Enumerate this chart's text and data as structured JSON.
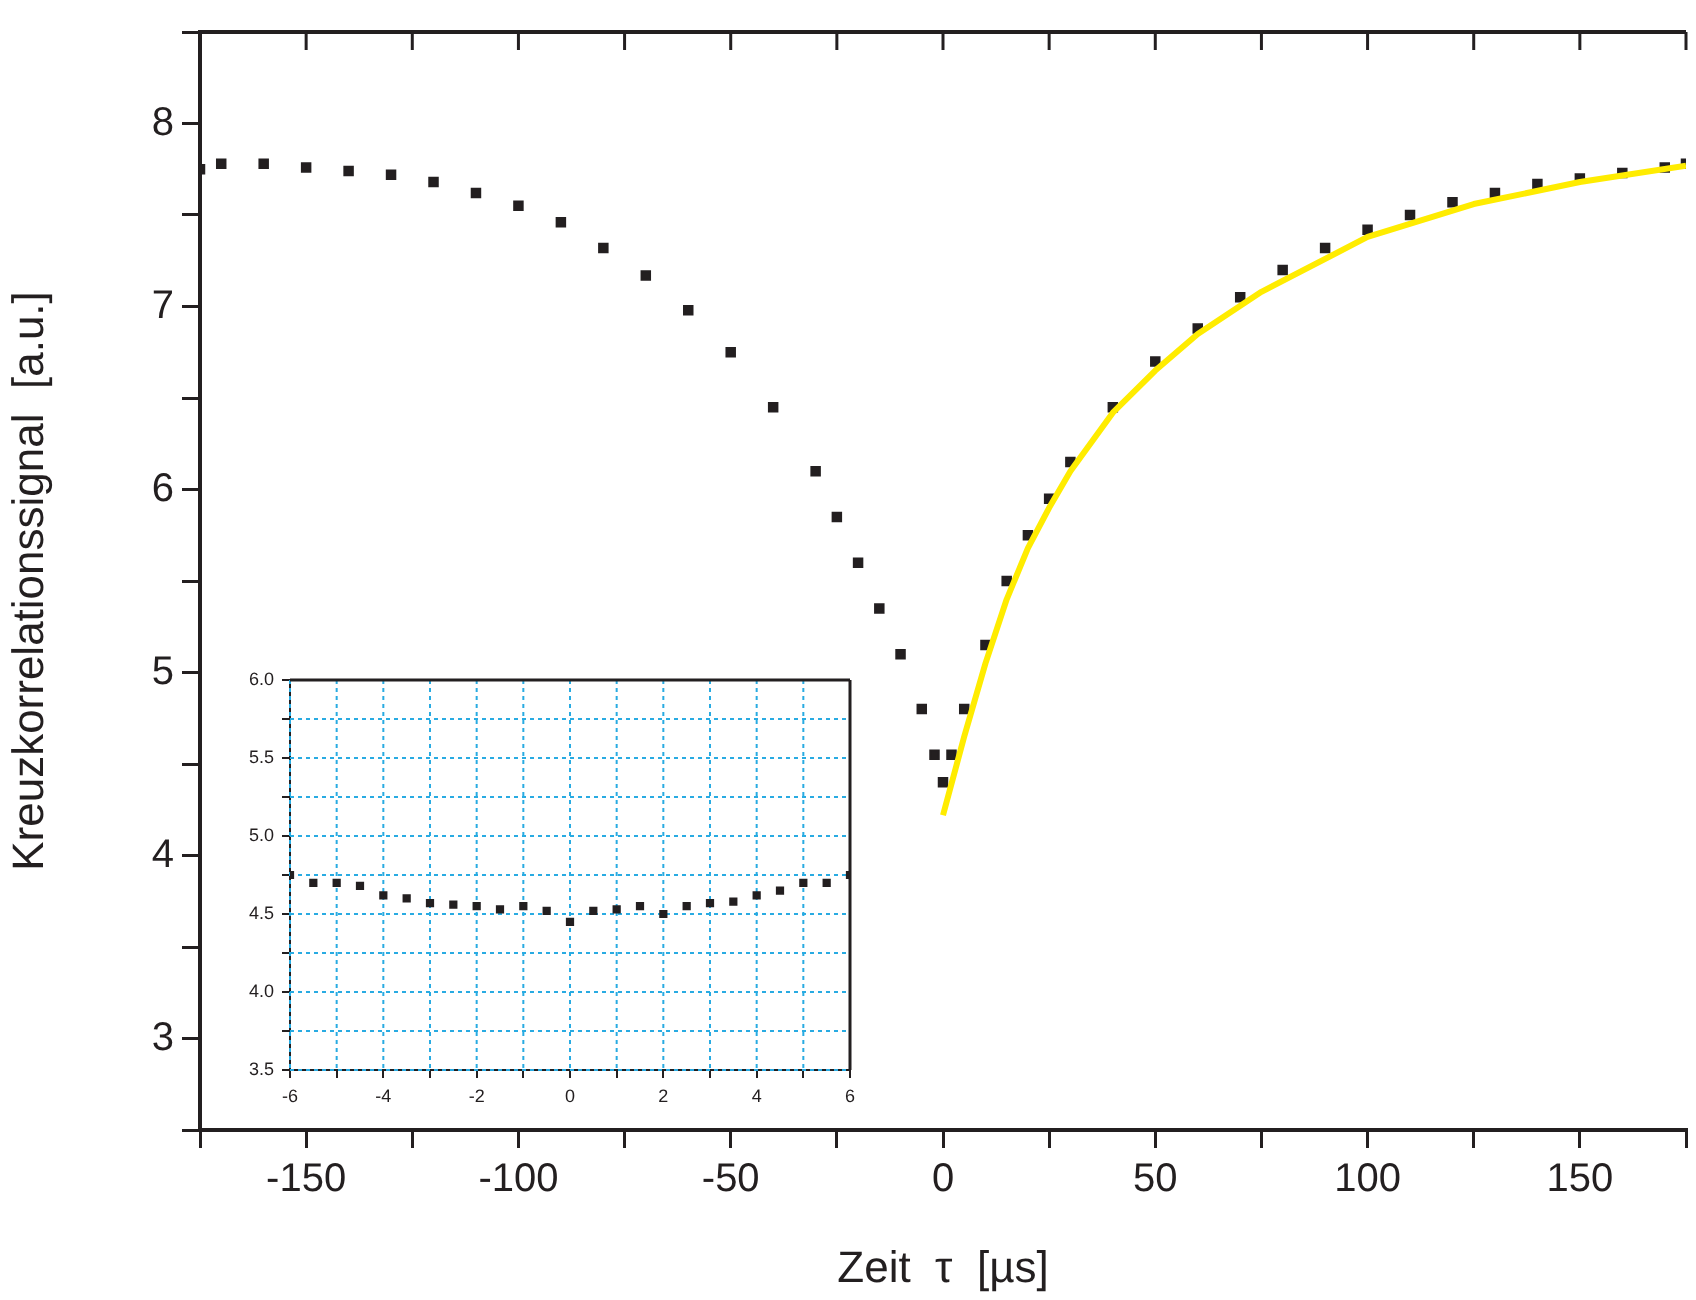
{
  "chart_data": [
    {
      "type": "scatter",
      "xlabel": "Zeit  τ  [µs]",
      "ylabel": "Kreuzkorrelationssignal  [a.u.]",
      "xlim": [
        -175,
        175
      ],
      "ylim": [
        2.5,
        8.5
      ],
      "xticks": [
        {
          "value": -175,
          "label": null
        },
        -150,
        {
          "value": -125,
          "label": null
        },
        -100,
        {
          "value": -75,
          "label": null
        },
        -50,
        {
          "value": -25,
          "label": null
        },
        0,
        {
          "value": 25,
          "label": null
        },
        50,
        {
          "value": 75,
          "label": null
        },
        100,
        {
          "value": 125,
          "label": null
        },
        150,
        {
          "value": 175,
          "label": null
        }
      ],
      "yticks": [
        {
          "value": 2.5,
          "label": null
        },
        3,
        {
          "value": 3.5,
          "label": null
        },
        4,
        {
          "value": 4.5,
          "label": null
        },
        5,
        {
          "value": 5.5,
          "label": null
        },
        6,
        {
          "value": 6.5,
          "label": null
        },
        7,
        {
          "value": 7.5,
          "label": null
        },
        8,
        {
          "value": 8.5,
          "label": null
        }
      ],
      "grid": false,
      "legend": false,
      "marker": "square",
      "series": [
        {
          "type": "scatter",
          "color": "#231f20",
          "x": [
            -175,
            -170,
            -160,
            -150,
            -140,
            -130,
            -120,
            -110,
            -100,
            -90,
            -80,
            -70,
            -60,
            -50,
            -40,
            -30,
            -25,
            -20,
            -15,
            -10,
            -5,
            -2,
            0,
            2,
            5,
            10,
            15,
            20,
            25,
            30,
            40,
            50,
            60,
            70,
            80,
            90,
            100,
            110,
            120,
            130,
            140,
            150,
            160,
            170,
            175
          ],
          "values": [
            7.75,
            7.78,
            7.78,
            7.76,
            7.74,
            7.72,
            7.68,
            7.62,
            7.55,
            7.46,
            7.32,
            7.17,
            6.98,
            6.75,
            6.45,
            6.1,
            5.85,
            5.6,
            5.35,
            5.1,
            4.8,
            4.55,
            4.4,
            4.55,
            4.8,
            5.15,
            5.5,
            5.75,
            5.95,
            6.15,
            6.45,
            6.7,
            6.88,
            7.05,
            7.2,
            7.32,
            7.42,
            7.5,
            7.57,
            7.62,
            7.67,
            7.7,
            7.73,
            7.76,
            7.78
          ]
        },
        {
          "type": "line",
          "color": "#ffec00",
          "marker": "none",
          "x": [
            0,
            5,
            10,
            15,
            20,
            25,
            30,
            40,
            50,
            60,
            75,
            100,
            125,
            150,
            175
          ],
          "values": [
            4.22,
            4.65,
            5.05,
            5.4,
            5.68,
            5.9,
            6.1,
            6.42,
            6.65,
            6.85,
            7.08,
            7.38,
            7.56,
            7.68,
            7.77
          ]
        }
      ]
    },
    {
      "type": "scatter",
      "xlim": [
        -6,
        6
      ],
      "ylim": [
        3.5,
        6
      ],
      "xticks": [
        -6,
        {
          "value": -5,
          "label": null
        },
        -4,
        {
          "value": -3,
          "label": null
        },
        -2,
        {
          "value": -1,
          "label": null
        },
        0,
        {
          "value": 1,
          "label": null
        },
        2,
        {
          "value": 3,
          "label": null
        },
        4,
        {
          "value": 5,
          "label": null
        },
        6
      ],
      "yticks": [
        {
          "value": 3.5,
          "label": "3.5"
        },
        {
          "value": 3.75,
          "label": null
        },
        {
          "value": 4,
          "label": "4.0"
        },
        {
          "value": 4.25,
          "label": null
        },
        {
          "value": 4.5,
          "label": "4.5"
        },
        {
          "value": 4.75,
          "label": null
        },
        {
          "value": 5,
          "label": "5.0"
        },
        {
          "value": 5.25,
          "label": null
        },
        {
          "value": 5.5,
          "label": "5.5"
        },
        {
          "value": 5.75,
          "label": null
        },
        {
          "value": 6,
          "label": "6.0"
        }
      ],
      "grid": true,
      "legend": false,
      "marker": "square",
      "series": [
        {
          "color": "#231f20",
          "x": [
            -6,
            -5.5,
            -5,
            -4.5,
            -4,
            -3.5,
            -3,
            -2.5,
            -2,
            -1.5,
            -1,
            -0.5,
            0,
            0.5,
            1,
            1.5,
            2,
            2.5,
            3,
            3.5,
            4,
            4.5,
            5,
            5.5,
            6
          ],
          "values": [
            4.75,
            4.7,
            4.7,
            4.68,
            4.62,
            4.6,
            4.57,
            4.56,
            4.55,
            4.53,
            4.55,
            4.52,
            4.45,
            4.52,
            4.53,
            4.55,
            4.5,
            4.55,
            4.57,
            4.58,
            4.62,
            4.65,
            4.7,
            4.7,
            4.75
          ]
        }
      ]
    }
  ]
}
